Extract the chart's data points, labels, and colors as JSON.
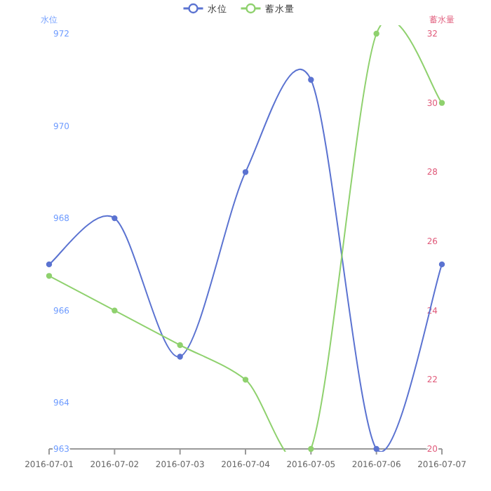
{
  "chart_data": {
    "type": "line",
    "ylabel": "水位",
    "y2label": "蓄水量",
    "categories": [
      "2016-07-01",
      "2016-07-02",
      "2016-07-03",
      "2016-07-04",
      "2016-07-05",
      "2016-07-06",
      "2016-07-07"
    ],
    "series": [
      {
        "name": "水位",
        "color": "#5b73d1",
        "values": [
          967,
          968,
          965,
          969,
          971,
          963,
          967
        ]
      },
      {
        "name": "蓄水量",
        "color": "#8fd16e",
        "axis": "y2",
        "values": [
          25,
          24,
          23,
          22,
          20,
          32,
          30
        ]
      }
    ],
    "ylim": [
      963,
      972
    ],
    "yticks": [
      963,
      964,
      966,
      968,
      970,
      972
    ],
    "y2lim": [
      20,
      32
    ],
    "y2ticks": [
      20,
      22,
      24,
      26,
      28,
      30,
      32
    ],
    "legend": "top",
    "marker": "circle",
    "grid": false
  }
}
